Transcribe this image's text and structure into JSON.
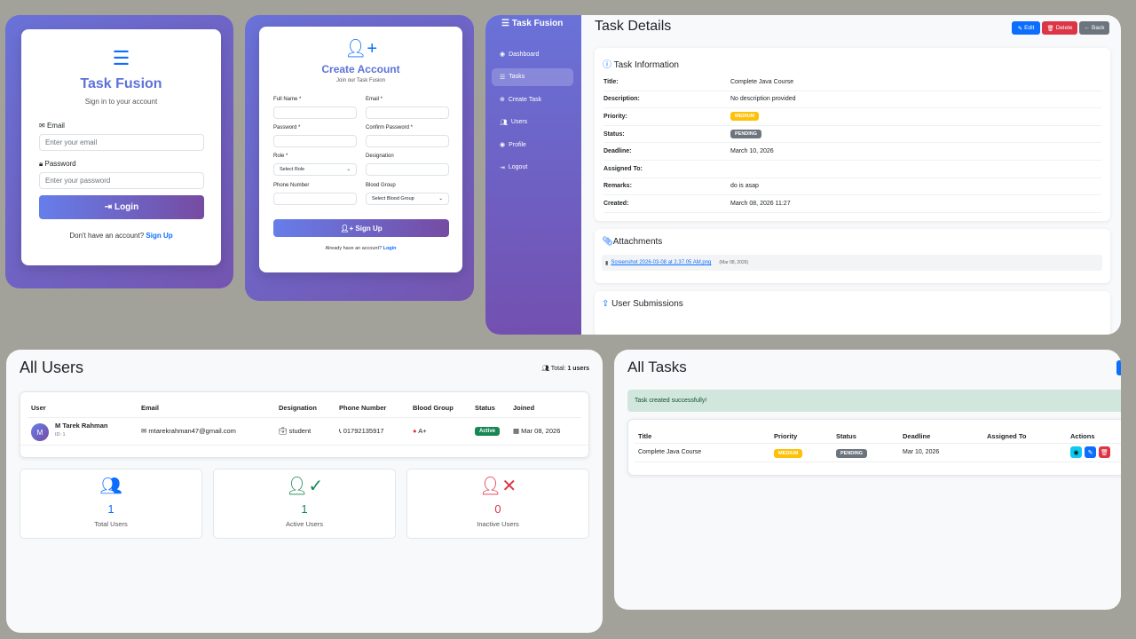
{
  "login": {
    "icon": "tasks-icon",
    "title": "Task Fusion",
    "subtitle": "Sign in to your account",
    "email_label": "Email",
    "email_placeholder": "Enter your email",
    "password_label": "Password",
    "password_placeholder": "Enter your password",
    "login_button": "Login",
    "signup_prompt": "Don't have an account?",
    "signup_link": "Sign Up"
  },
  "register": {
    "icon": "user-plus-icon",
    "title": "Create Account",
    "subtitle": "Join our Task Fusion",
    "full_name_label": "Full Name *",
    "email_label": "Email *",
    "password_label": "Password *",
    "confirm_password_label": "Confirm Password *",
    "role_label": "Role *",
    "role_value": "Select Role",
    "designation_label": "Designation",
    "phone_label": "Phone Number",
    "blood_group_label": "Blood Group",
    "blood_group_value": "Select Blood Group",
    "signup_button": "Sign Up",
    "login_prompt": "Already have an account?",
    "login_link": "Login"
  },
  "task_details": {
    "brand": "Task Fusion",
    "sidebar": [
      {
        "label": "Dashboard",
        "icon": "dashboard-icon"
      },
      {
        "label": "Tasks",
        "icon": "tasks-icon",
        "active": true
      },
      {
        "label": "Create Task",
        "icon": "plus-circle-icon"
      },
      {
        "label": "Users",
        "icon": "users-icon"
      },
      {
        "label": "Profile",
        "icon": "user-circle-icon"
      },
      {
        "label": "Logout",
        "icon": "logout-icon"
      }
    ],
    "page_title": "Task Details",
    "buttons": {
      "edit": "Edit",
      "delete": "Delete",
      "back": "Back"
    },
    "info_title": "Task Information",
    "fields": [
      {
        "key": "Title:",
        "value": "Complete Java Course"
      },
      {
        "key": "Description:",
        "value": "No description provided"
      },
      {
        "key": "Priority:",
        "badge": "MEDIUM"
      },
      {
        "key": "Status:",
        "badge": "PENDING"
      },
      {
        "key": "Deadline:",
        "value": "March 10, 2026"
      },
      {
        "key": "Assigned To:",
        "value": ""
      },
      {
        "key": "Remarks:",
        "value": "do is asap"
      },
      {
        "key": "Created:",
        "value": "March 08, 2026 11:27"
      }
    ],
    "attachments_title": "Attachments",
    "attachment_name": "Screenshot 2026-03-08 at 2.37.05 AM.png",
    "attachment_date": "(Mar 08, 2026)",
    "submissions_title": "User Submissions"
  },
  "users": {
    "page_title": "All Users",
    "total_label": "Total:",
    "total_value": "1 users",
    "columns": [
      "User",
      "Email",
      "Designation",
      "Phone Number",
      "Blood Group",
      "Status",
      "Joined"
    ],
    "rows": [
      {
        "avatar": "M",
        "name": "M Tarek Rahman",
        "id": "ID: 1",
        "email": "mtarekrahman47@gmail.com",
        "designation": "student",
        "phone": "01792135917",
        "blood_group": "A+",
        "status": "Active",
        "joined": "Mar 08, 2026"
      }
    ],
    "stats": [
      {
        "value": "1",
        "label": "Total Users",
        "color": "#0d6efd",
        "icon": "users-icon"
      },
      {
        "value": "1",
        "label": "Active Users",
        "color": "#198754",
        "icon": "user-check-icon"
      },
      {
        "value": "0",
        "label": "Inactive Users",
        "color": "#dc3545",
        "icon": "user-times-icon"
      }
    ]
  },
  "tasks": {
    "page_title": "All Tasks",
    "alert": "Task created successfully!",
    "columns": [
      "Title",
      "Priority",
      "Status",
      "Deadline",
      "Assigned To",
      "Actions"
    ],
    "rows": [
      {
        "title": "Complete Java Course",
        "priority": "MEDIUM",
        "status": "PENDING",
        "deadline": "Mar 10, 2026",
        "assigned_to": ""
      }
    ]
  },
  "colors": {
    "primary": "#0d6efd",
    "danger": "#dc3545",
    "success": "#198754",
    "warning": "#ffc107",
    "secondary": "#6c757d",
    "gradient_start": "#667eea",
    "gradient_end": "#764ba2"
  }
}
